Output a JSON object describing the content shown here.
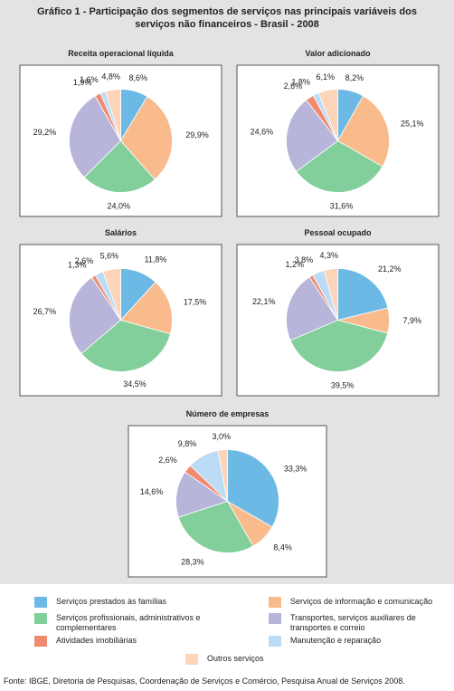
{
  "title": [
    "Gráfico 1 - Participação dos segmentos de serviços nas principais variáveis dos",
    "serviços não financeiros - Brasil - 2008"
  ],
  "legend": [
    {
      "name": "Serviços prestados às famílias",
      "color": "#6cb9e6"
    },
    {
      "name": "Serviços de informação e comunicação",
      "color": "#f9ba8c"
    },
    {
      "name": "Serviços profissionais, administrativos e complementares",
      "color": "#82cf9c"
    },
    {
      "name": "Transportes, serviços auxiliares de transportes e correio",
      "color": "#b8b5da"
    },
    {
      "name": "Atividades imobiliárias",
      "color": "#f08b70"
    },
    {
      "name": "Manutenção e reparação",
      "color": "#bcdbf4"
    },
    {
      "name": "Outros serviços",
      "color": "#fbd4ba"
    }
  ],
  "chart_data": [
    {
      "type": "pie",
      "title": "Receita operacional líquida",
      "values": [
        8.6,
        29.9,
        24.0,
        29.2,
        1.9,
        1.6,
        4.8
      ],
      "value_labels": [
        "8,6%",
        "29,9%",
        "24,0%",
        "29,2%",
        "1,9%",
        "1,6%",
        "4,8%"
      ]
    },
    {
      "type": "pie",
      "title": "Valor adicionado",
      "values": [
        8.2,
        25.1,
        31.6,
        24.6,
        2.6,
        1.8,
        6.1
      ],
      "value_labels": [
        "8,2%",
        "25,1%",
        "31,6%",
        "24,6%",
        "2,6%",
        "1,8%",
        "6,1%"
      ]
    },
    {
      "type": "pie",
      "title": "Salários",
      "values": [
        11.8,
        17.5,
        34.5,
        26.7,
        1.3,
        2.6,
        5.6
      ],
      "value_labels": [
        "11,8%",
        "17,5%",
        "34,5%",
        "26,7%",
        "1,3%",
        "2,6%",
        "5,6%"
      ]
    },
    {
      "type": "pie",
      "title": "Pessoal ocupado",
      "values": [
        21.2,
        7.9,
        39.5,
        22.1,
        1.2,
        3.8,
        4.3
      ],
      "value_labels": [
        "21,2%",
        "7,9%",
        "39,5%",
        "22,1%",
        "1,2%",
        "3,8%",
        "4,3%"
      ]
    },
    {
      "type": "pie",
      "title": "Número de empresas",
      "values": [
        33.3,
        8.4,
        28.3,
        14.6,
        2.6,
        9.8,
        3.0
      ],
      "value_labels": [
        "33,3%",
        "8,4%",
        "28,3%",
        "14,6%",
        "2,6%",
        "9,8%",
        "3,0%"
      ]
    }
  ],
  "source": "Fonte: IBGE, Diretoria de Pesquisas, Coordenação de Serviços e Comércio, Pesquisa Anual de Serviços 2008."
}
